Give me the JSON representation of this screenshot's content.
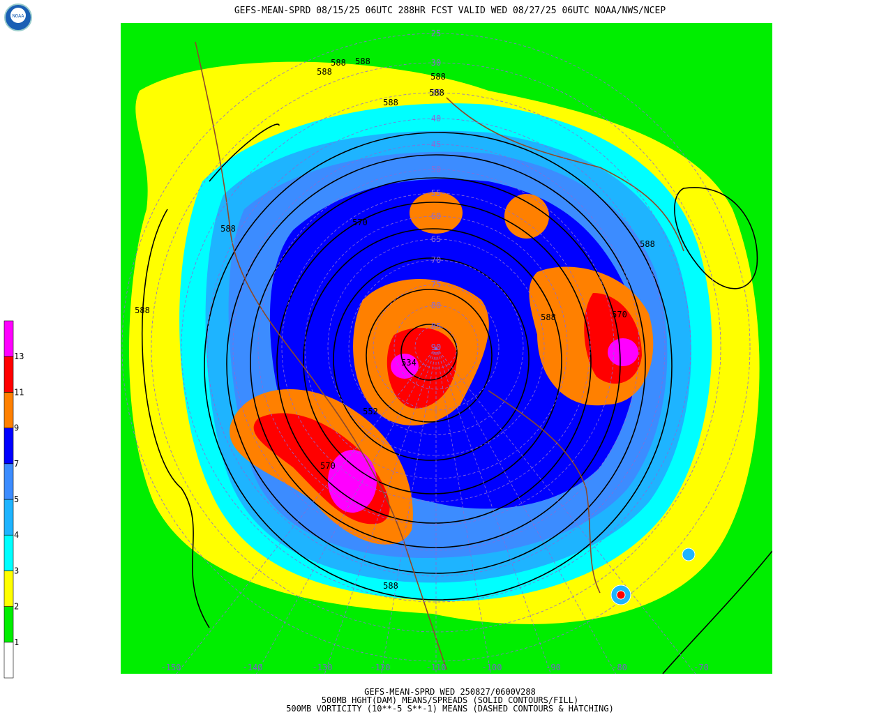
{
  "header": {
    "title": "GEFS-MEAN-SPRD 08/15/25 06UTC 288HR FCST VALID WED 08/27/25 06UTC NOAA/NWS/NCEP",
    "logo": "NOAA"
  },
  "footer": {
    "lines": [
      "GEFS-MEAN-SPRD WED 250827/0600V288",
      "500MB HGHT(DAM) MEANS/SPREADS (SOLID CONTOURS/FILL)",
      "500MB VORTICITY (10**-5 S**-1) MEANS (DASHED CONTOURS & HATCHING)"
    ]
  },
  "colorbar": {
    "labels": [
      "1",
      "2",
      "3",
      "4",
      "5",
      "7",
      "9",
      "11",
      "13"
    ],
    "colors": [
      "#ffffff",
      "#00ee00",
      "#ffff00",
      "#00ffff",
      "#1eb4ff",
      "#3c8cff",
      "#0000ff",
      "#ff8000",
      "#ff0000",
      "#ff00ff"
    ]
  },
  "contour_labels": [
    "588",
    "588",
    "588",
    "588",
    "588",
    "588",
    "588",
    "588",
    "588",
    "588",
    "570",
    "570",
    "570",
    "552",
    "534",
    "588"
  ],
  "lat_labels": [
    "25",
    "30",
    "35",
    "40",
    "45",
    "50",
    "55",
    "60",
    "65",
    "70",
    "75",
    "80",
    "85",
    "90"
  ],
  "lon_labels": [
    "-150",
    "-140",
    "-130",
    "-120",
    "-110",
    "-100",
    "-90",
    "-80",
    "-70"
  ]
}
